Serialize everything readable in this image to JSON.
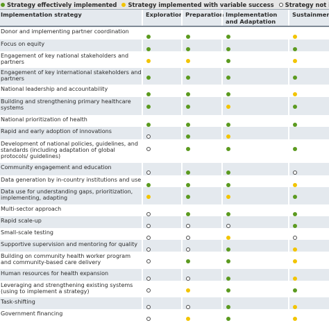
{
  "legend": [
    {
      "status": "green",
      "label": "Strategy effectively implemented"
    },
    {
      "status": "yellow",
      "label": "Strategy implemented with variable success"
    },
    {
      "status": "empty",
      "label": "Strategy not implemented"
    }
  ],
  "colors": {
    "green": "#5b9a1f",
    "yellow": "#f2c400",
    "empty_border": "#4a4a4a",
    "shade": "#e4e9ee"
  },
  "table": {
    "headers": [
      "Implementation strategy",
      "Exploration",
      "Preparation",
      "Implementation and Adaptation",
      "Sustainment"
    ],
    "rows": [
      {
        "label": "Donor and implementing partner coordination",
        "h": 18,
        "shaded": false,
        "status": [
          "green",
          "green",
          "green",
          "yellow"
        ]
      },
      {
        "label": "Focus on equity",
        "h": 17,
        "shaded": true,
        "status": [
          "green",
          "green",
          "green",
          "green"
        ]
      },
      {
        "label": "Engagement of key national stakeholders and partners",
        "h": 24,
        "shaded": false,
        "status": [
          "yellow",
          "yellow",
          "green",
          "yellow"
        ]
      },
      {
        "label": "Engagement of key international stakeholders and partners",
        "h": 24,
        "shaded": true,
        "status": [
          "green",
          "green",
          "green",
          "green"
        ]
      },
      {
        "label": "National leadership and accountability",
        "h": 18,
        "shaded": false,
        "status": [
          "green",
          "green",
          "green",
          "yellow"
        ]
      },
      {
        "label": "Building and strengthening primary healthcare systems",
        "h": 26,
        "shaded": true,
        "status": [
          "green",
          "green",
          "yellow",
          "green"
        ]
      },
      {
        "label": "National prioritization of health",
        "h": 17,
        "shaded": false,
        "status": [
          "green",
          "green",
          "green",
          "green"
        ]
      },
      {
        "label": "Rapid and early adoption of innovations",
        "h": 18,
        "shaded": true,
        "status": [
          "empty",
          "green",
          "yellow",
          ""
        ]
      },
      {
        "label": "Development of national policies, guidelines, and standards (including adaptation of global protocols/ guidelines)",
        "h": 34,
        "shaded": false,
        "status": [
          "empty",
          "green",
          "green",
          "green"
        ]
      },
      {
        "label": "Community engagement and education",
        "h": 18,
        "shaded": true,
        "status": [
          "empty",
          "green",
          "green",
          "empty"
        ]
      },
      {
        "label": "Data generation by in-country institutions and use",
        "h": 17,
        "shaded": false,
        "status": [
          "green",
          "green",
          "green",
          "yellow"
        ]
      },
      {
        "label": "Data use for understanding gaps, prioritization, implementing, adapting",
        "h": 25,
        "shaded": true,
        "status": [
          "yellow",
          "green",
          "yellow",
          "green"
        ]
      },
      {
        "label": "Multi-sector approach",
        "h": 17,
        "shaded": false,
        "status": [
          "empty",
          "green",
          "green",
          "green"
        ]
      },
      {
        "label": "Rapid scale-up",
        "h": 17,
        "shaded": true,
        "status": [
          "empty",
          "empty",
          "empty",
          "green"
        ]
      },
      {
        "label": "Small-scale testing",
        "h": 17,
        "shaded": false,
        "status": [
          "empty",
          "empty",
          "yellow",
          "empty"
        ]
      },
      {
        "label": "Supportive supervision and mentoring for quality",
        "h": 17,
        "shaded": true,
        "status": [
          "empty",
          "empty",
          "green",
          "yellow"
        ]
      },
      {
        "label": "Building on community health worker program and community-based care delivery",
        "h": 25,
        "shaded": false,
        "status": [
          "empty",
          "green",
          "green",
          "yellow"
        ]
      },
      {
        "label": "Human resources for health expansion",
        "h": 17,
        "shaded": true,
        "status": [
          "empty",
          "empty",
          "green",
          "yellow"
        ]
      },
      {
        "label": "Leveraging and strengthening existing systems (using to implement a strategy)",
        "h": 24,
        "shaded": false,
        "status": [
          "empty",
          "yellow",
          "green",
          "green"
        ]
      },
      {
        "label": "Task-shifting",
        "h": 17,
        "shaded": true,
        "status": [
          "empty",
          "empty",
          "green",
          "yellow"
        ]
      },
      {
        "label": "Government financing",
        "h": 17,
        "shaded": false,
        "status": [
          "empty",
          "yellow",
          "green",
          "yellow"
        ]
      }
    ]
  }
}
